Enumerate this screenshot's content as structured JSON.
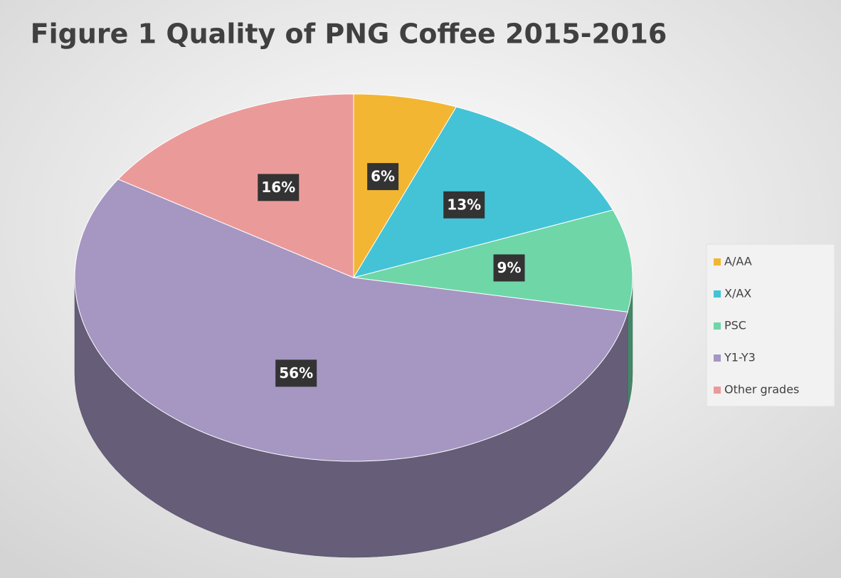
{
  "chart_data": {
    "type": "pie",
    "title": "Figure 1 Quality of PNG Coffee 2015-2016",
    "categories": [
      "A/AA",
      "X/AX",
      "PSC",
      "Y1-Y3",
      "Other grades"
    ],
    "values": [
      6,
      13,
      9,
      56,
      16
    ],
    "value_labels": [
      "6%",
      "13%",
      "9%",
      "56%",
      "16%"
    ],
    "colors": [
      "#f2b632",
      "#44c3d6",
      "#6fd6a8",
      "#a596c2",
      "#eb9a9a"
    ],
    "legend": "right"
  }
}
